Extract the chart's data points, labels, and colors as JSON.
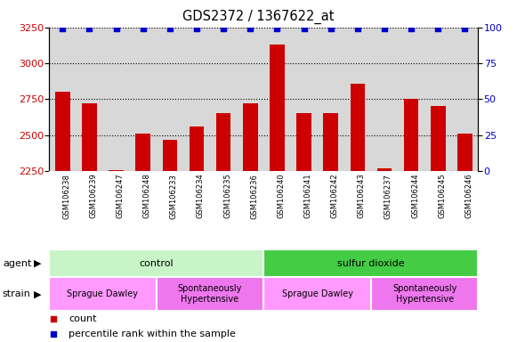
{
  "title": "GDS2372 / 1367622_at",
  "samples": [
    "GSM106238",
    "GSM106239",
    "GSM106247",
    "GSM106248",
    "GSM106233",
    "GSM106234",
    "GSM106235",
    "GSM106236",
    "GSM106240",
    "GSM106241",
    "GSM106242",
    "GSM106243",
    "GSM106237",
    "GSM106244",
    "GSM106245",
    "GSM106246"
  ],
  "counts": [
    2800,
    2720,
    2255,
    2510,
    2465,
    2560,
    2650,
    2720,
    3130,
    2650,
    2650,
    2860,
    2270,
    2750,
    2700,
    2510
  ],
  "percentile_ranks": [
    99,
    99,
    99,
    99,
    99,
    99,
    99,
    99,
    99,
    99,
    99,
    99,
    99,
    99,
    99,
    99
  ],
  "bar_color": "#cc0000",
  "dot_color": "#0000cc",
  "ylim_left": [
    2250,
    3250
  ],
  "ylim_right": [
    0,
    100
  ],
  "yticks_left": [
    2250,
    2500,
    2750,
    3000,
    3250
  ],
  "yticks_right": [
    0,
    25,
    50,
    75,
    100
  ],
  "ylabel_left_color": "#cc0000",
  "ylabel_right_color": "#0000cc",
  "agent_labels": [
    {
      "text": "control",
      "start": 0,
      "end": 8,
      "color": "#c8f5c8"
    },
    {
      "text": "sulfur dioxide",
      "start": 8,
      "end": 16,
      "color": "#44cc44"
    }
  ],
  "strain_labels": [
    {
      "text": "Sprague Dawley",
      "start": 0,
      "end": 4,
      "color": "#ff99ff"
    },
    {
      "text": "Spontaneously\nHypertensive",
      "start": 4,
      "end": 8,
      "color": "#ee77ee"
    },
    {
      "text": "Sprague Dawley",
      "start": 8,
      "end": 12,
      "color": "#ff99ff"
    },
    {
      "text": "Spontaneously\nHypertensive",
      "start": 12,
      "end": 16,
      "color": "#ee77ee"
    }
  ],
  "legend_count_color": "#cc0000",
  "legend_dot_color": "#0000cc",
  "bg_bar_area": "#d8d8d8",
  "bar_width": 0.55
}
